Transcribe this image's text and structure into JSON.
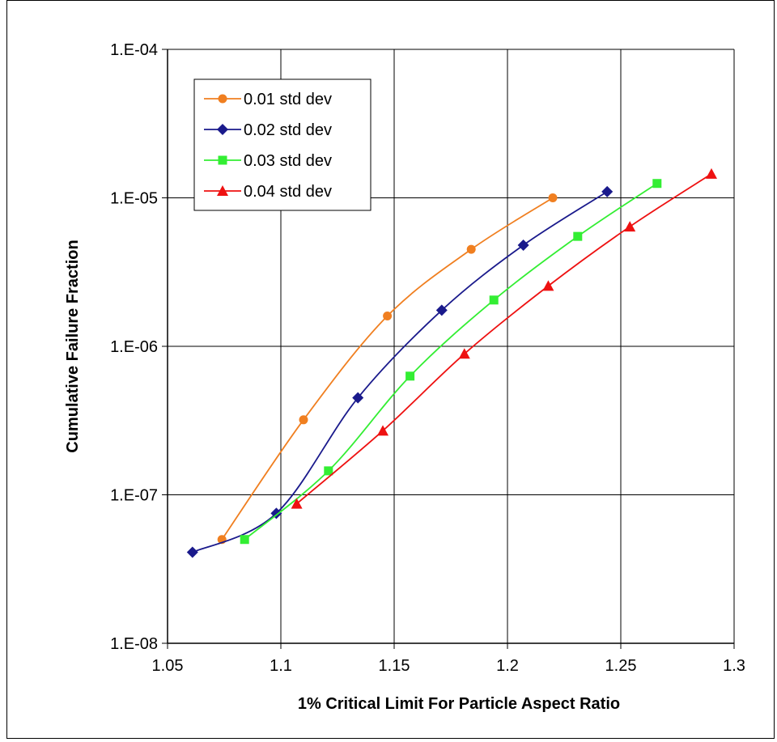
{
  "chart_data": {
    "type": "line",
    "title": "",
    "xlabel": "1% Critical Limit For Particle Aspect Ratio",
    "ylabel": "Cumulative Failure Fraction",
    "xlim": [
      1.05,
      1.3
    ],
    "ylim": [
      1e-08,
      0.0001
    ],
    "yscale": "log",
    "grid": true,
    "legend_position": "top-left",
    "x_ticks": [
      "1.05",
      "1.1",
      "1.15",
      "1.2",
      "1.25",
      "1.3"
    ],
    "y_ticks": [
      "1.E-08",
      "1.E-07",
      "1.E-06",
      "1.E-05",
      "1.E-04"
    ],
    "series": [
      {
        "name": "0.01 std dev",
        "color": "#F07F20",
        "marker": "circle",
        "x": [
          1.074,
          1.11,
          1.147,
          1.184,
          1.22
        ],
        "y": [
          5e-08,
          3.2e-07,
          1.6e-06,
          4.5e-06,
          1e-05
        ]
      },
      {
        "name": "0.02 std dev",
        "color": "#1A1A8C",
        "marker": "diamond",
        "x": [
          1.061,
          1.098,
          1.134,
          1.171,
          1.207,
          1.244
        ],
        "y": [
          4.1e-08,
          7.5e-08,
          4.5e-07,
          1.75e-06,
          4.8e-06,
          1.1e-05
        ]
      },
      {
        "name": "0.03 std dev",
        "color": "#33EE33",
        "marker": "square",
        "x": [
          1.084,
          1.121,
          1.157,
          1.194,
          1.231,
          1.266
        ],
        "y": [
          5e-08,
          1.45e-07,
          6.3e-07,
          2.05e-06,
          5.5e-06,
          1.25e-05
        ]
      },
      {
        "name": "0.04 std dev",
        "color": "#EE1111",
        "marker": "triangle",
        "x": [
          1.107,
          1.145,
          1.181,
          1.218,
          1.254,
          1.29
        ],
        "y": [
          8.7e-08,
          2.7e-07,
          8.9e-07,
          2.55e-06,
          6.4e-06,
          1.45e-05
        ]
      }
    ]
  }
}
